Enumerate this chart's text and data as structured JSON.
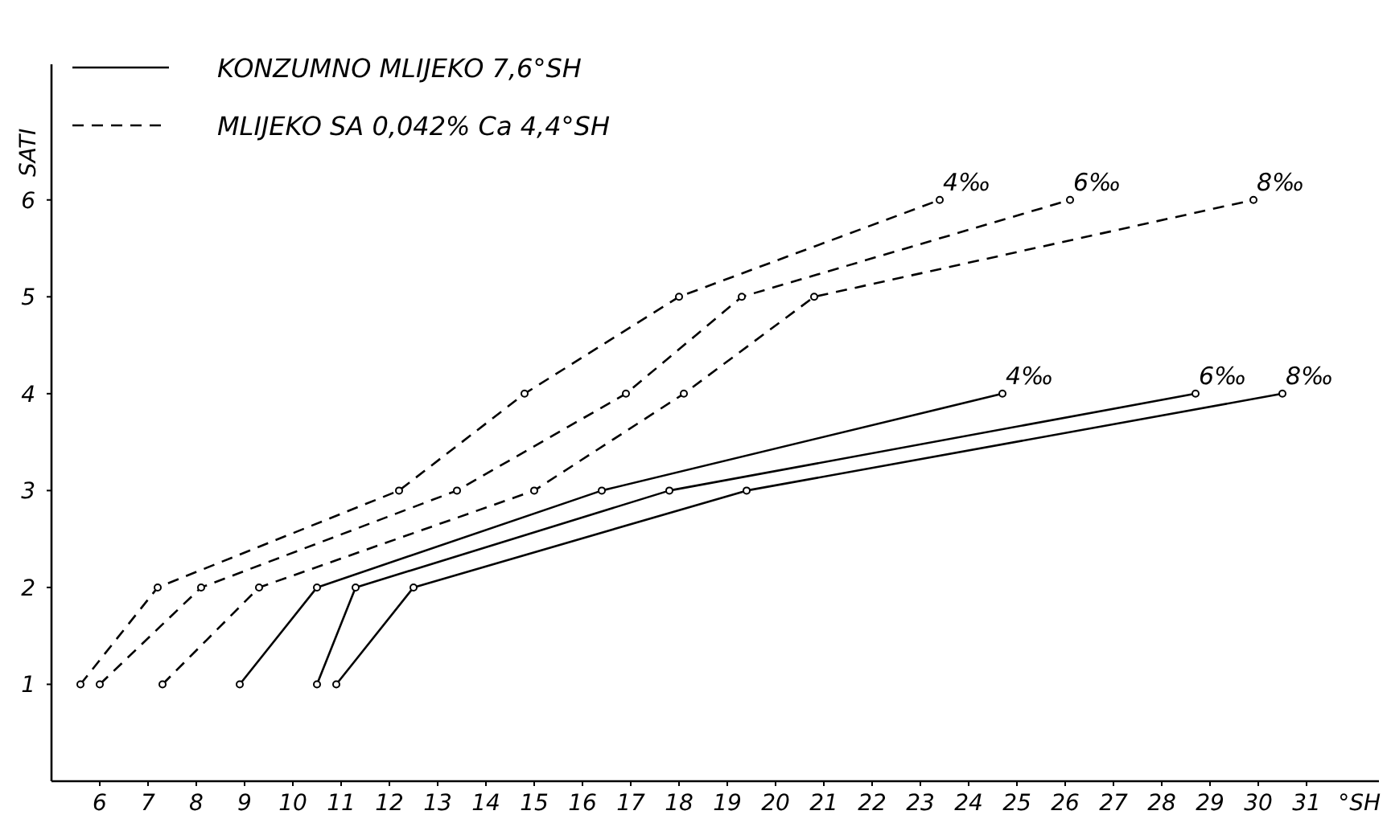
{
  "chart_data": {
    "type": "line",
    "xlabel": "°SH",
    "ylabel": "SATI",
    "xlim": [
      5,
      32.5
    ],
    "ylim": [
      0,
      7.4
    ],
    "xticks": [
      6,
      7,
      8,
      9,
      10,
      11,
      12,
      13,
      14,
      15,
      16,
      17,
      18,
      19,
      20,
      21,
      22,
      23,
      24,
      25,
      26,
      27,
      28,
      29,
      30,
      31
    ],
    "yticks": [
      1,
      2,
      3,
      4,
      5,
      6
    ],
    "grid": false,
    "marker": "circle",
    "annotations": [
      "KONZUMNO MLIJEKO 7,6°SH",
      "MLIJEKO SA 0,042% Ca 4,4°SH"
    ],
    "series": [
      {
        "name": "4‰",
        "color": "#000000",
        "line_style": "solid",
        "x": [
          8.9,
          10.5,
          16.4,
          24.7
        ],
        "values": [
          1,
          2,
          3,
          4
        ]
      },
      {
        "name": "6‰",
        "color": "#000000",
        "line_style": "solid",
        "x": [
          10.5,
          11.3,
          17.8,
          28.7
        ],
        "values": [
          1,
          2,
          3,
          4
        ]
      },
      {
        "name": "8‰",
        "color": "#000000",
        "line_style": "solid",
        "x": [
          10.9,
          12.5,
          19.4,
          30.5
        ],
        "values": [
          1,
          2,
          3,
          4
        ]
      },
      {
        "name": "4‰",
        "color": "#000000",
        "line_style": "dashed",
        "x": [
          5.6,
          7.2,
          12.2,
          14.8,
          18,
          23.4
        ],
        "values": [
          1,
          2,
          3,
          4,
          5,
          6
        ]
      },
      {
        "name": "6‰",
        "color": "#000000",
        "line_style": "dashed",
        "x": [
          6,
          8.1,
          13.4,
          16.9,
          19.3,
          26.1
        ],
        "values": [
          1,
          2,
          3,
          4,
          5,
          6
        ]
      },
      {
        "name": "8‰",
        "color": "#000000",
        "line_style": "dashed",
        "x": [
          7.3,
          9.3,
          15,
          18.1,
          20.8,
          29.9
        ],
        "values": [
          1,
          2,
          3,
          4,
          5,
          6
        ]
      }
    ]
  }
}
